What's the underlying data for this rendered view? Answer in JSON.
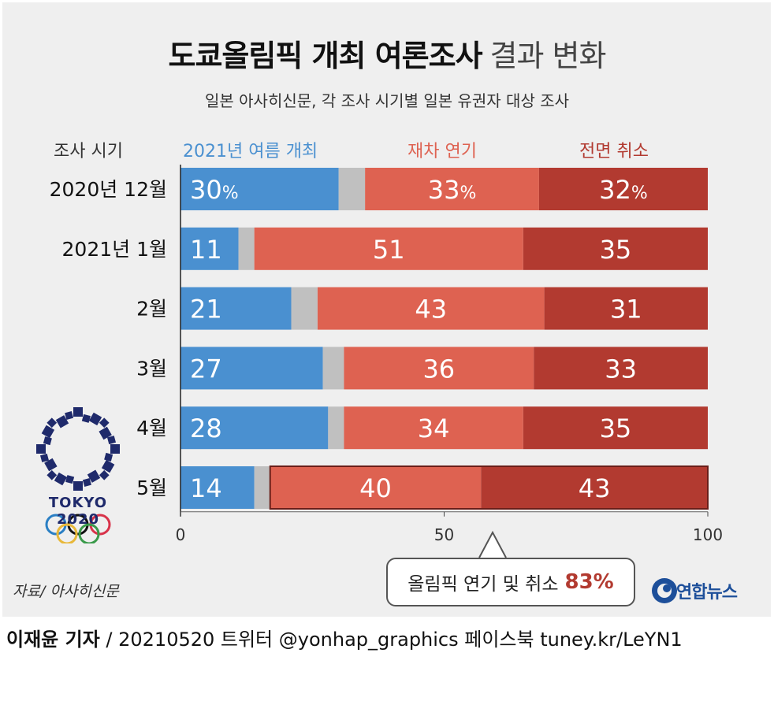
{
  "title": {
    "main": "도쿄올림픽 개최 여론조사",
    "sub": "결과 변화"
  },
  "subtitle": "일본 아사히신문, 각 조사 시기별 일본 유권자 대상 조사",
  "chart_data": {
    "type": "bar",
    "orientation": "horizontal",
    "stacked": true,
    "period_header": "조사 시기",
    "categories": [
      "2020년 12월",
      "2021년 1월",
      "2월",
      "3월",
      "4월",
      "5월"
    ],
    "series": [
      {
        "name": "2021년 여름 개최",
        "values": [
          30,
          11,
          21,
          27,
          28,
          14
        ],
        "color": "#4a90d0"
      },
      {
        "name": "",
        "values": [
          5,
          3,
          5,
          4,
          3,
          3
        ],
        "color": "#c0c0c0"
      },
      {
        "name": "재차 연기",
        "values": [
          33,
          51,
          43,
          36,
          34,
          40
        ],
        "color": "#de6251"
      },
      {
        "name": "전면 취소",
        "values": [
          32,
          35,
          31,
          33,
          35,
          43
        ],
        "color": "#b23a30"
      }
    ],
    "percent_sign_first_row": "%",
    "xlim": [
      0,
      100
    ],
    "xticks": [
      0,
      50,
      100
    ],
    "legend_position": "top",
    "highlight": {
      "row": "5월",
      "series": [
        "재차 연기",
        "전면 취소"
      ]
    }
  },
  "callout": {
    "text": "올림픽 연기 및 취소",
    "value": "83%"
  },
  "source": "자료/ 아사히신문",
  "byline": {
    "reporter": "이재윤 기자",
    "rest": " / 20210520   트위터 @yonhap_graphics  페이스북 tuney.kr/LeYN1"
  },
  "logos": {
    "tokyo": "TOKYO 2020",
    "agency": "연합뉴스"
  }
}
